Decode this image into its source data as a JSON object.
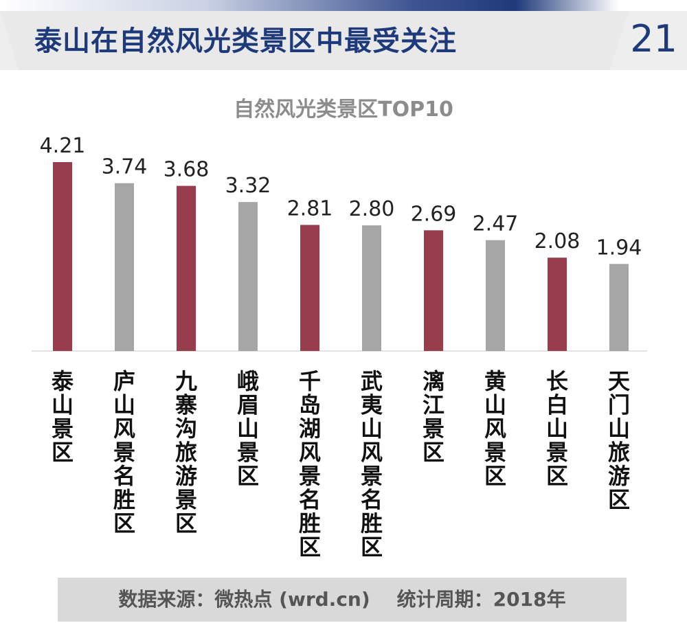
{
  "header": {
    "title": "泰山在自然风光类景区中最受关注",
    "page_number": "21"
  },
  "chart_data": {
    "type": "bar",
    "title": "自然风光类景区TOP10",
    "categories": [
      "泰山景区",
      "庐山风景名胜区",
      "九寨沟旅游景区",
      "峨眉山景区",
      "千岛湖风景名胜区",
      "武夷山风景名胜区",
      "漓江景区",
      "黄山风景区",
      "长白山景区",
      "天门山旅游区"
    ],
    "values": [
      4.21,
      3.74,
      3.68,
      3.32,
      2.81,
      2.8,
      2.69,
      2.47,
      2.08,
      1.94
    ],
    "value_labels": [
      "4.21",
      "3.74",
      "3.68",
      "3.32",
      "2.81",
      "2.80",
      "2.69",
      "2.47",
      "2.08",
      "1.94"
    ],
    "colors": {
      "highlight": "#983d4d",
      "normal": "#a6a6a6"
    },
    "bar_color_pattern": [
      "highlight",
      "normal",
      "highlight",
      "normal",
      "highlight",
      "normal",
      "highlight",
      "normal",
      "highlight",
      "normal"
    ],
    "ylim": [
      0,
      4.21
    ],
    "grid": false,
    "xlabel": "",
    "ylabel": ""
  },
  "footer": {
    "text": "数据来源：微热点 (wrd.cn)    统计周期：2018年"
  },
  "colors": {
    "title": "#1f3a7a",
    "header_band": "#e9e9e9",
    "footer_band": "#d9d9d9"
  }
}
